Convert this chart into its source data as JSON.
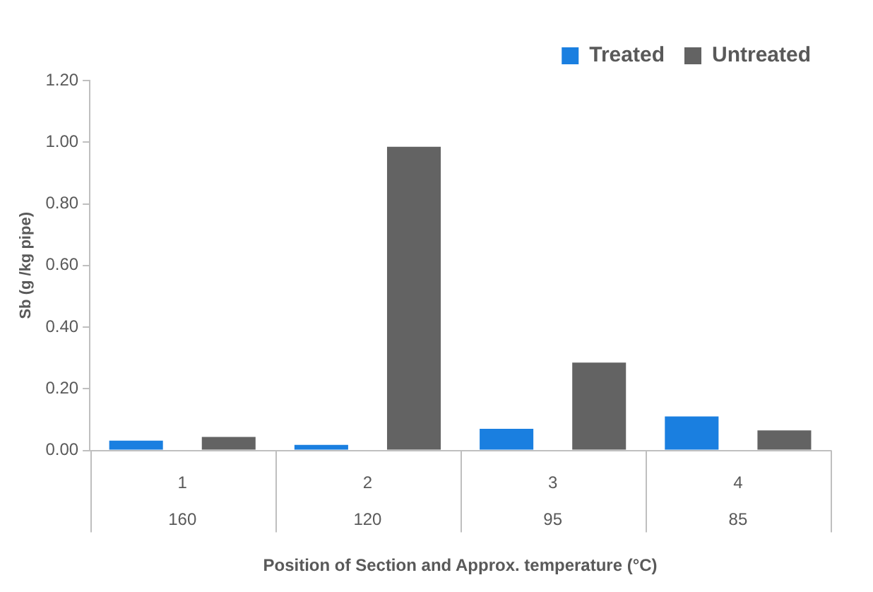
{
  "chart_data": {
    "type": "bar",
    "xlabel": "Position of Section and Approx. temperature (°C)",
    "ylabel": "Sb (g /kg pipe)",
    "categories": [
      "1\n160",
      "2\n120",
      "3\n95",
      "4\n85"
    ],
    "series": [
      {
        "name": "Treated",
        "color": "#1a7fe0",
        "values": [
          0.032,
          0.018,
          0.07,
          0.11
        ]
      },
      {
        "name": "Untreated",
        "color": "#636363",
        "values": [
          0.044,
          0.985,
          0.285,
          0.065
        ]
      }
    ],
    "ylim": [
      0,
      1.2
    ],
    "yticks": [
      {
        "value": 0,
        "label": "0.00"
      },
      {
        "value": 0.2,
        "label": "0.20"
      },
      {
        "value": 0.4,
        "label": "0.40"
      },
      {
        "value": 0.6,
        "label": "0.60"
      },
      {
        "value": 0.8,
        "label": "0.80"
      },
      {
        "value": 1.0,
        "label": "1.00"
      },
      {
        "value": 1.2,
        "label": "1.20"
      }
    ],
    "legend": "top right",
    "grid": false
  }
}
